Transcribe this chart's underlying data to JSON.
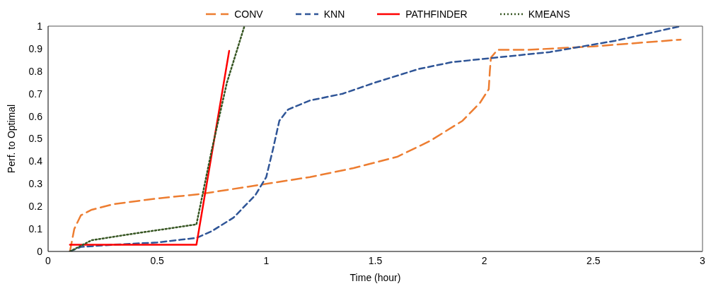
{
  "chart_data": {
    "type": "line",
    "xlabel": "Time (hour)",
    "ylabel": "Perf. to Optimal",
    "xlim": [
      0,
      3
    ],
    "xticks": [
      0,
      0.5,
      1,
      1.5,
      2,
      2.5,
      3
    ],
    "ylim": [
      0,
      1
    ],
    "yticks": [
      0,
      0.1,
      0.2,
      0.3,
      0.4,
      0.5,
      0.6,
      0.7,
      0.8,
      0.9,
      1
    ],
    "grid": false,
    "legend": "top",
    "marker": "none",
    "series": [
      {
        "name": "CONV",
        "color": "#ed7d31",
        "line_style": "dashed",
        "x": [
          0.1,
          0.12,
          0.15,
          0.2,
          0.3,
          0.5,
          0.7,
          1.0,
          1.2,
          1.4,
          1.6,
          1.75,
          1.9,
          1.98,
          2.02,
          2.025,
          2.03,
          2.06,
          2.2,
          2.5,
          2.9
        ],
        "values": [
          0,
          0.1,
          0.16,
          0.185,
          0.21,
          0.235,
          0.255,
          0.3,
          0.33,
          0.37,
          0.42,
          0.49,
          0.58,
          0.66,
          0.72,
          0.8,
          0.86,
          0.895,
          0.895,
          0.91,
          0.94
        ]
      },
      {
        "name": "KNN",
        "color": "#2f5597",
        "line_style": "dashed",
        "x": [
          0.1,
          0.15,
          0.3,
          0.5,
          0.68,
          0.75,
          0.85,
          0.95,
          1.0,
          1.03,
          1.06,
          1.1,
          1.2,
          1.35,
          1.5,
          1.7,
          1.85,
          2.0,
          2.3,
          2.6,
          2.9
        ],
        "values": [
          0,
          0.02,
          0.03,
          0.04,
          0.06,
          0.09,
          0.15,
          0.25,
          0.33,
          0.45,
          0.58,
          0.63,
          0.67,
          0.7,
          0.75,
          0.81,
          0.84,
          0.855,
          0.885,
          0.935,
          1.0
        ]
      },
      {
        "name": "PATHFINDER",
        "color": "#ff0000",
        "line_style": "solid",
        "x": [
          0.1,
          0.68,
          0.83
        ],
        "values": [
          0.03,
          0.03,
          0.89
        ]
      },
      {
        "name": "KMEANS",
        "color": "#375623",
        "line_style": "dotted",
        "x": [
          0.1,
          0.2,
          0.4,
          0.68,
          0.75,
          0.82,
          0.9
        ],
        "values": [
          0,
          0.05,
          0.08,
          0.12,
          0.45,
          0.75,
          1.0
        ]
      }
    ]
  }
}
